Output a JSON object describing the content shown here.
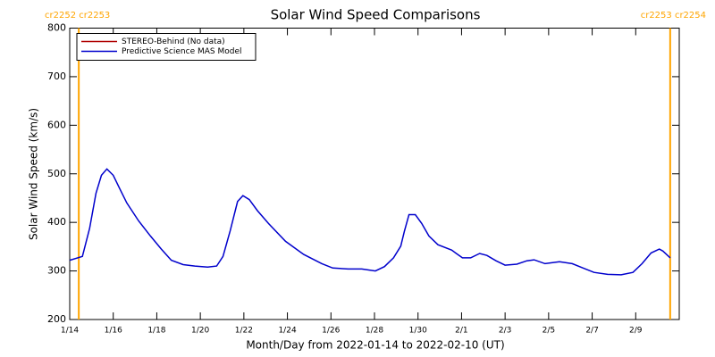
{
  "chart_data": {
    "type": "line",
    "title": "Solar Wind Speed Comparisons",
    "x_label": "Month/Day from 2022-01-14 to 2022-02-10 (UT)",
    "y_label": "Solar Wind Speed (km/s)",
    "x": [
      "2022-01-14T00:00",
      "2022-01-14T14:00",
      "2022-01-14T22:00",
      "2022-01-15T05:00",
      "2022-01-15T11:00",
      "2022-01-15T17:00",
      "2022-01-16T00:00",
      "2022-01-16T07:00",
      "2022-01-16T15:00",
      "2022-01-17T04:00",
      "2022-01-17T17:00",
      "2022-01-18T05:00",
      "2022-01-18T16:00",
      "2022-01-19T05:00",
      "2022-01-19T18:00",
      "2022-01-20T08:00",
      "2022-01-20T18:00",
      "2022-01-21T01:00",
      "2022-01-21T09:00",
      "2022-01-21T17:00",
      "2022-01-21T23:00",
      "2022-01-22T06:00",
      "2022-01-22T15:00",
      "2022-01-23T03:00",
      "2022-01-23T22:00",
      "2022-01-24T18:00",
      "2022-01-25T14:00",
      "2022-01-26T02:00",
      "2022-01-26T19:00",
      "2022-01-27T10:00",
      "2022-01-28T01:00",
      "2022-01-28T11:00",
      "2022-01-28T21:00",
      "2022-01-29T05:00",
      "2022-01-29T09:00",
      "2022-01-29T14:00",
      "2022-01-29T21:00",
      "2022-01-30T04:00",
      "2022-01-30T12:00",
      "2022-01-30T22:00",
      "2022-01-31T13:00",
      "2022-02-01T01:00",
      "2022-02-01T10:00",
      "2022-02-01T20:00",
      "2022-02-02T04:00",
      "2022-02-02T14:00",
      "2022-02-03T00:00",
      "2022-02-03T13:00",
      "2022-02-04T00:00",
      "2022-02-04T08:00",
      "2022-02-04T20:00",
      "2022-02-05T12:00",
      "2022-02-06T02:00",
      "2022-02-06T14:00",
      "2022-02-07T02:00",
      "2022-02-07T17:00",
      "2022-02-08T08:00",
      "2022-02-08T21:00",
      "2022-02-09T07:00",
      "2022-02-09T17:00",
      "2022-02-10T02:00",
      "2022-02-10T06:00",
      "2022-02-10T14:00"
    ],
    "series": [
      {
        "name": "STEREO-Behind (No data)",
        "color": "#b00000",
        "values": [
          null,
          null,
          null,
          null,
          null,
          null,
          null,
          null,
          null,
          null,
          null,
          null,
          null,
          null,
          null,
          null,
          null,
          null,
          null,
          null,
          null,
          null,
          null,
          null,
          null,
          null,
          null,
          null,
          null,
          null,
          null,
          null,
          null,
          null,
          null,
          null,
          null,
          null,
          null,
          null,
          null,
          null,
          null,
          null,
          null,
          null,
          null,
          null,
          null,
          null,
          null,
          null,
          null,
          null,
          null,
          null,
          null,
          null,
          null,
          null,
          null,
          null,
          null
        ]
      },
      {
        "name": "Predictive Science MAS Model",
        "color": "#0000cc",
        "values": [
          322,
          330,
          388,
          460,
          497,
          510,
          497,
          470,
          440,
          403,
          372,
          345,
          322,
          313,
          310,
          308,
          310,
          330,
          383,
          443,
          455,
          447,
          424,
          398,
          361,
          334,
          315,
          306,
          304,
          304,
          300,
          309,
          327,
          351,
          382,
          416,
          416,
          398,
          372,
          354,
          343,
          327,
          327,
          336,
          332,
          321,
          312,
          314,
          321,
          323,
          315,
          319,
          315,
          306,
          297,
          293,
          292,
          297,
          315,
          337,
          345,
          341,
          327
        ]
      }
    ],
    "xlim": [
      "2022-01-14",
      "2022-02-11"
    ],
    "xticks": [
      {
        "value": "2022-01-14",
        "label": "1/14"
      },
      {
        "value": "2022-01-16",
        "label": "1/16"
      },
      {
        "value": "2022-01-18",
        "label": "1/18"
      },
      {
        "value": "2022-01-20",
        "label": "1/20"
      },
      {
        "value": "2022-01-22",
        "label": "1/22"
      },
      {
        "value": "2022-01-24",
        "label": "1/24"
      },
      {
        "value": "2022-01-26",
        "label": "1/26"
      },
      {
        "value": "2022-01-28",
        "label": "1/28"
      },
      {
        "value": "2022-01-30",
        "label": "1/30"
      },
      {
        "value": "2022-02-01",
        "label": "2/1"
      },
      {
        "value": "2022-02-03",
        "label": "2/3"
      },
      {
        "value": "2022-02-05",
        "label": "2/5"
      },
      {
        "value": "2022-02-07",
        "label": "2/7"
      },
      {
        "value": "2022-02-09",
        "label": "2/9"
      }
    ],
    "ylim": [
      200,
      800
    ],
    "yticks": [
      200,
      300,
      400,
      500,
      600,
      700,
      800
    ],
    "legend": "upper-left",
    "annotations": [
      {
        "text": "cr2252 cr2253",
        "x": "2022-01-14T10:00",
        "color": "#ffa500"
      },
      {
        "text": "cr2253 cr2254",
        "x": "2022-02-10T14:00",
        "color": "#ffa500"
      }
    ]
  }
}
